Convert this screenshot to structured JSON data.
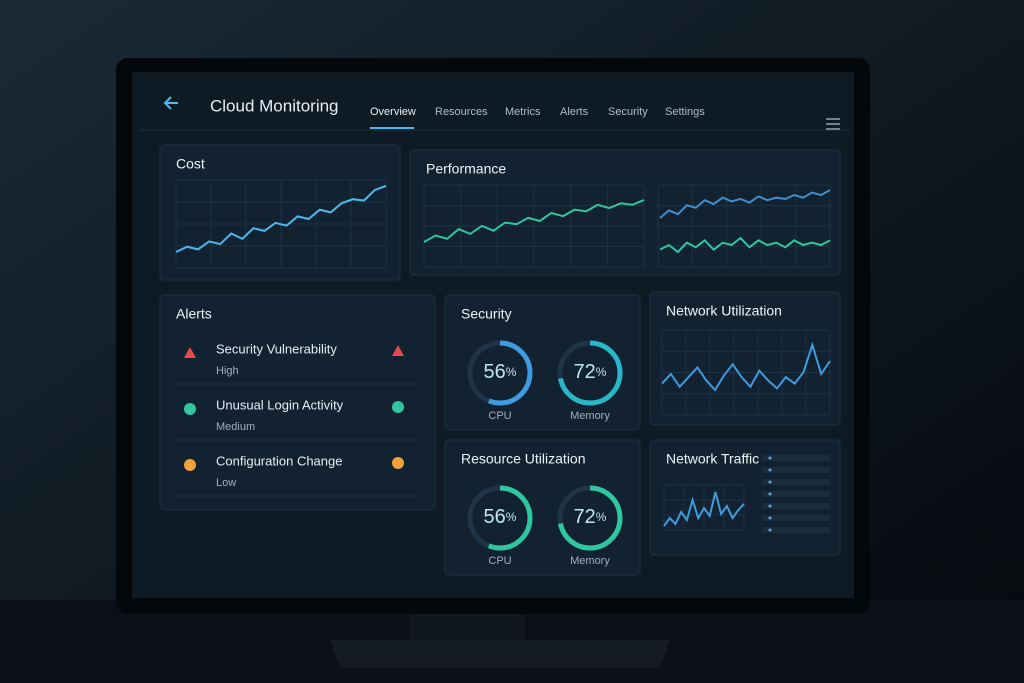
{
  "header": {
    "title": "Cloud Monitoring",
    "nav": [
      "Overview",
      "Resources",
      "Metrics",
      "Alerts",
      "Security",
      "Settings"
    ],
    "active": 0
  },
  "cost": {
    "title": "Cost",
    "color": "#4fb8f0",
    "values": [
      8,
      12,
      10,
      16,
      14,
      22,
      18,
      26,
      24,
      30,
      28,
      35,
      33,
      40,
      38,
      45,
      48,
      47,
      55,
      58
    ]
  },
  "performance": {
    "title": "Performance",
    "series": [
      {
        "color": "#2fc6a0",
        "values": [
          10,
          14,
          12,
          18,
          15,
          20,
          17,
          22,
          21,
          25,
          23,
          28,
          26,
          30,
          29,
          33,
          31,
          34,
          33,
          36
        ]
      },
      {
        "color": "#3f8fd0",
        "values": [
          20,
          26,
          23,
          30,
          28,
          34,
          31,
          36,
          33,
          35,
          32,
          37,
          34,
          36,
          35,
          38,
          36,
          40,
          38,
          42
        ]
      },
      {
        "color": "#2fc6a0",
        "values": [
          8,
          10,
          7,
          11,
          9,
          12,
          8,
          11,
          10,
          13,
          9,
          12,
          10,
          11,
          9,
          12,
          10,
          11,
          10,
          12
        ]
      }
    ]
  },
  "alerts": {
    "title": "Alerts",
    "items": [
      {
        "name": "Security Vulnerability",
        "severity": "High",
        "color": "#e5484d",
        "icon": "triangle"
      },
      {
        "name": "Unusual Login Activity",
        "severity": "Medium",
        "color": "#2fc6a0",
        "icon": "circle"
      },
      {
        "name": "Configuration Change",
        "severity": "Low",
        "color": "#f0a23c",
        "icon": "circle"
      }
    ]
  },
  "security": {
    "title": "Security",
    "gauges": [
      {
        "value": 56,
        "unit": "%",
        "label": "CPU",
        "color": "#3f9be0"
      },
      {
        "value": 72,
        "unit": "%",
        "label": "Memory",
        "color": "#27b7c9"
      }
    ]
  },
  "resource_utilization": {
    "title": "Resource Utilization",
    "gauges": [
      {
        "value": 56,
        "unit": "%",
        "label": "CPU",
        "color": "#2fc6a0"
      },
      {
        "value": 72,
        "unit": "%",
        "label": "Memory",
        "color": "#2fc6a0"
      }
    ]
  },
  "network_utilization": {
    "title": "Network Utilization",
    "color": "#3f9be0",
    "values": [
      20,
      26,
      18,
      24,
      30,
      22,
      16,
      25,
      32,
      24,
      18,
      28,
      22,
      17,
      24,
      20,
      27,
      44,
      26,
      34
    ]
  },
  "network_traffic": {
    "title": "Network Traffic",
    "color": "#3f9be0",
    "values": [
      5,
      9,
      6,
      12,
      8,
      18,
      9,
      14,
      10,
      22,
      11,
      15,
      9,
      13,
      16
    ]
  }
}
